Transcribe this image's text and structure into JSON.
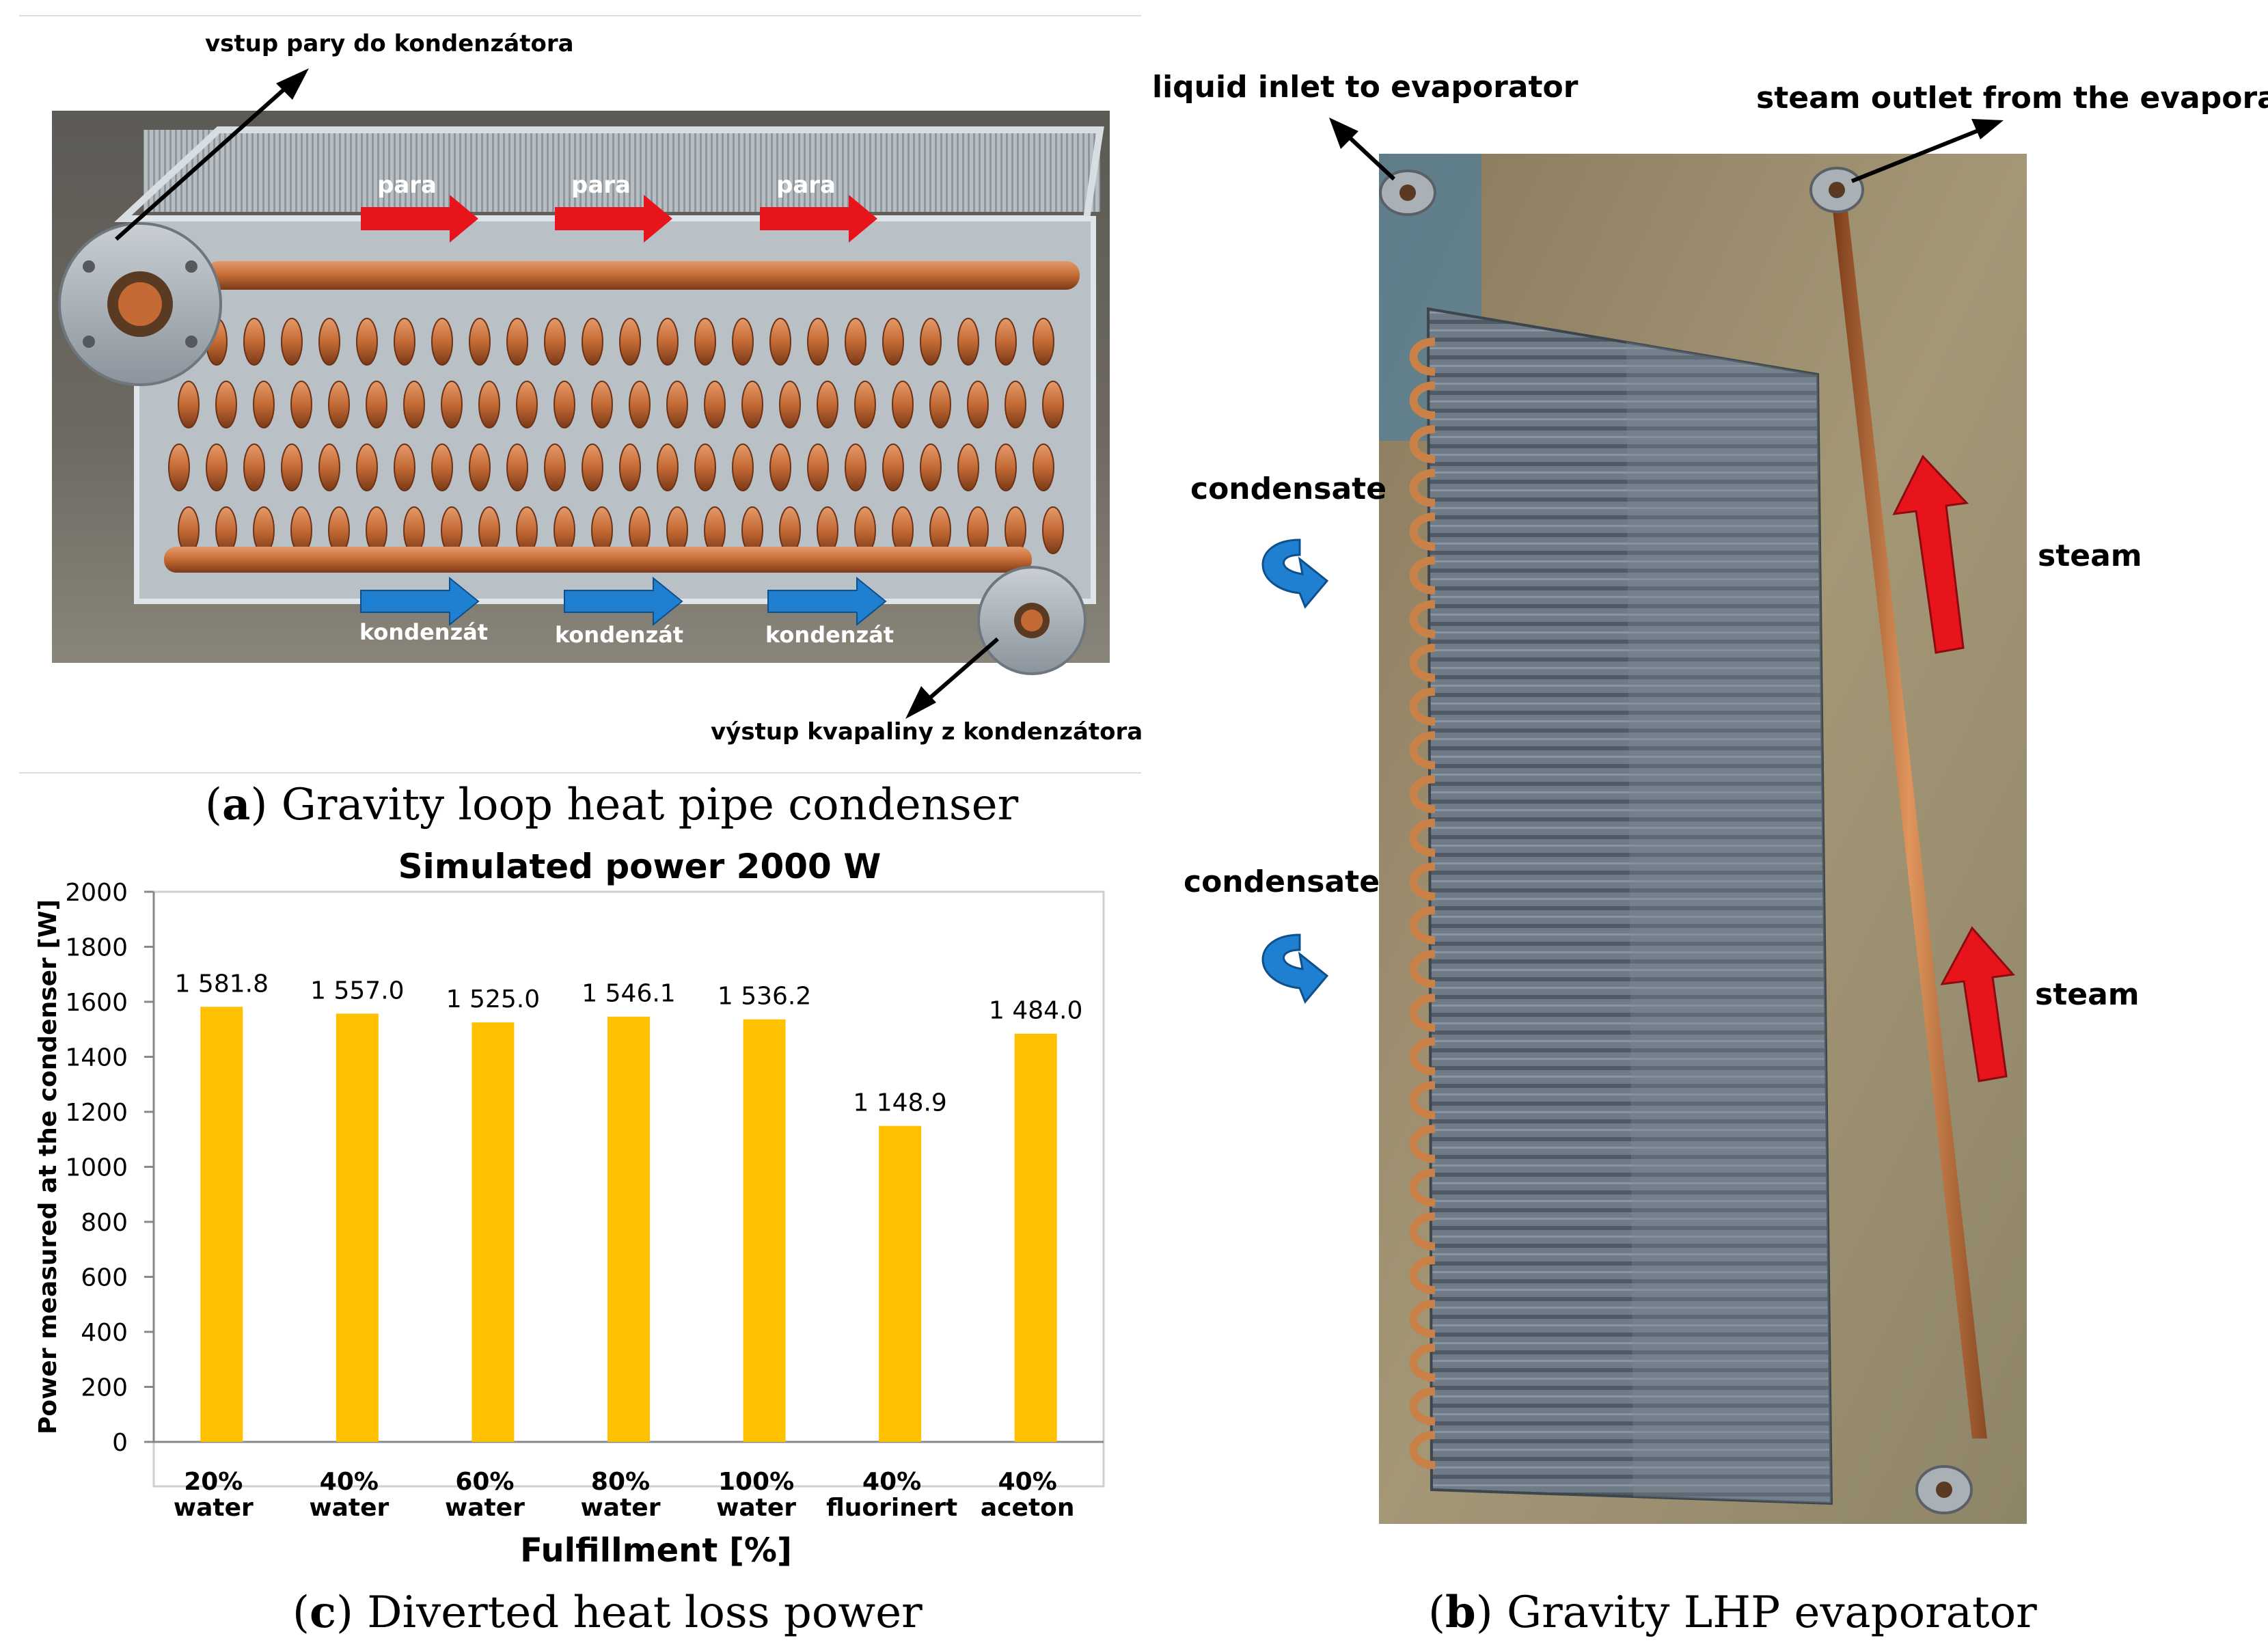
{
  "panel_a": {
    "annotations": {
      "top_label": "vstup pary do kondenzátora",
      "bottom_label": "výstup kvapaliny z kondenzátora",
      "steam_arrows": [
        "para",
        "para",
        "para"
      ],
      "condensate_arrows": [
        "kondenzát",
        "kondenzát",
        "kondenzát"
      ]
    },
    "caption": {
      "letter": "a",
      "text": "Gravity loop heat pipe condenser"
    }
  },
  "panel_b": {
    "annotations": {
      "liquid_inlet": "liquid inlet to evaporator",
      "steam_outlet": "steam outlet from the evaporator",
      "condensate_labels": [
        "condensate",
        "condensate"
      ],
      "steam_labels": [
        "steam",
        "steam"
      ]
    },
    "caption": {
      "letter": "b",
      "text": "Gravity LHP evaporator"
    }
  },
  "panel_c": {
    "caption": {
      "letter": "c",
      "text": "Diverted heat loss power"
    }
  },
  "colors": {
    "bar": "#FFC000",
    "steam_arrow": "#e8141b",
    "condensate_arrow": "#1f7fd0",
    "copper": "#c46a35",
    "steel": "#9aa3ad"
  },
  "icons": {
    "condensate_flow": "curved-arrow-icon",
    "flange": "pipe-flange-icon"
  },
  "chart_data": {
    "type": "bar",
    "title": "Simulated power 2000 W",
    "xlabel": "Fulfillment [%]",
    "ylabel": "Power measured at the condenser [W]",
    "ylim": [
      0,
      2000
    ],
    "yticks": [
      "0",
      "200",
      "400",
      "600",
      "800",
      "1000",
      "1200",
      "1400",
      "1600",
      "1800",
      "2000"
    ],
    "ytick_values": [
      0,
      200,
      400,
      600,
      800,
      1000,
      1200,
      1400,
      1600,
      1800,
      2000
    ],
    "categories": [
      [
        "20%",
        "water"
      ],
      [
        "40%",
        "water"
      ],
      [
        "60%",
        "water"
      ],
      [
        "80%",
        "water"
      ],
      [
        "100%",
        "water"
      ],
      [
        "40%",
        "fluorinert"
      ],
      [
        "40%",
        "aceton"
      ]
    ],
    "values": [
      1581.8,
      1557.0,
      1525.0,
      1546.1,
      1536.2,
      1148.9,
      1484.0
    ],
    "data_labels": [
      "1 581.8",
      "1 557.0",
      "1 525.0",
      "1 546.1",
      "1 536.2",
      "1 148.9",
      "1 484.0"
    ],
    "grid": false
  }
}
